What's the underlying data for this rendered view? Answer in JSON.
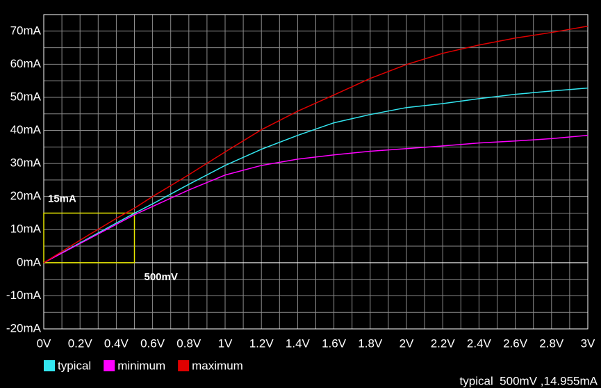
{
  "chart_data": {
    "type": "line",
    "x": [
      0,
      0.2,
      0.4,
      0.5,
      0.6,
      0.8,
      1,
      1.2,
      1.4,
      1.6,
      1.8,
      2,
      2.2,
      2.4,
      2.6,
      2.8,
      3
    ],
    "series": [
      {
        "name": "typical",
        "color": "#33e6f0",
        "values": [
          0,
          6,
          12,
          14.955,
          17.8,
          23.7,
          29.4,
          34.3,
          38.5,
          42.3,
          44.8,
          46.9,
          48.1,
          49.6,
          50.9,
          51.9,
          52.8
        ]
      },
      {
        "name": "minimum",
        "color": "#ff00ff",
        "values": [
          0,
          5.8,
          11.6,
          14.5,
          17,
          22,
          26.5,
          29.4,
          31.3,
          32.6,
          33.7,
          34.5,
          35.3,
          36.2,
          36.8,
          37.5,
          38.5
        ]
      },
      {
        "name": "maximum",
        "color": "#e00000",
        "values": [
          0,
          6.8,
          13.4,
          16.5,
          20,
          26.6,
          33.5,
          40.2,
          45.8,
          50.7,
          55.7,
          59.9,
          63.3,
          65.8,
          67.9,
          69.6,
          71.5
        ]
      }
    ],
    "xlim": [
      0,
      3
    ],
    "ylim": [
      -20,
      75
    ],
    "xticks": [
      {
        "value": 0,
        "label": "0V"
      },
      {
        "value": 0.2,
        "label": "0.2V"
      },
      {
        "value": 0.4,
        "label": "0.4V"
      },
      {
        "value": 0.6,
        "label": "0.6V"
      },
      {
        "value": 0.8,
        "label": "0.8V"
      },
      {
        "value": 1,
        "label": "1V"
      },
      {
        "value": 1.2,
        "label": "1.2V"
      },
      {
        "value": 1.4,
        "label": "1.4V"
      },
      {
        "value": 1.6,
        "label": "1.6V"
      },
      {
        "value": 1.8,
        "label": "1.8V"
      },
      {
        "value": 2,
        "label": "2V"
      },
      {
        "value": 2.2,
        "label": "2.2V"
      },
      {
        "value": 2.4,
        "label": "2.4V"
      },
      {
        "value": 2.6,
        "label": "2.6V"
      },
      {
        "value": 2.8,
        "label": "2.8V"
      },
      {
        "value": 3,
        "label": "3V"
      }
    ],
    "minor_xticks": [
      0.1,
      0.3,
      0.5,
      0.7,
      0.9,
      1.1,
      1.3,
      1.5,
      1.7,
      1.9,
      2.1,
      2.3,
      2.5,
      2.7,
      2.9
    ],
    "yticks": [
      {
        "value": -20,
        "label": "-20mA"
      },
      {
        "value": -10,
        "label": "-10mA"
      },
      {
        "value": 0,
        "label": "0mA"
      },
      {
        "value": 10,
        "label": "10mA"
      },
      {
        "value": 20,
        "label": "20mA"
      },
      {
        "value": 30,
        "label": "30mA"
      },
      {
        "value": 40,
        "label": "40mA"
      },
      {
        "value": 50,
        "label": "50mA"
      },
      {
        "value": 60,
        "label": "60mA"
      },
      {
        "value": 70,
        "label": "70mA"
      }
    ],
    "minor_yticks": [
      -15,
      -5,
      5,
      15,
      25,
      35,
      45,
      55,
      65
    ],
    "grid": true,
    "cursor_box": {
      "x": 0.5,
      "y": 15,
      "x_label": "500mV",
      "y_label": "15mA",
      "color": "#e6e600"
    },
    "readout": "typical  500mV ,14.955mA"
  }
}
